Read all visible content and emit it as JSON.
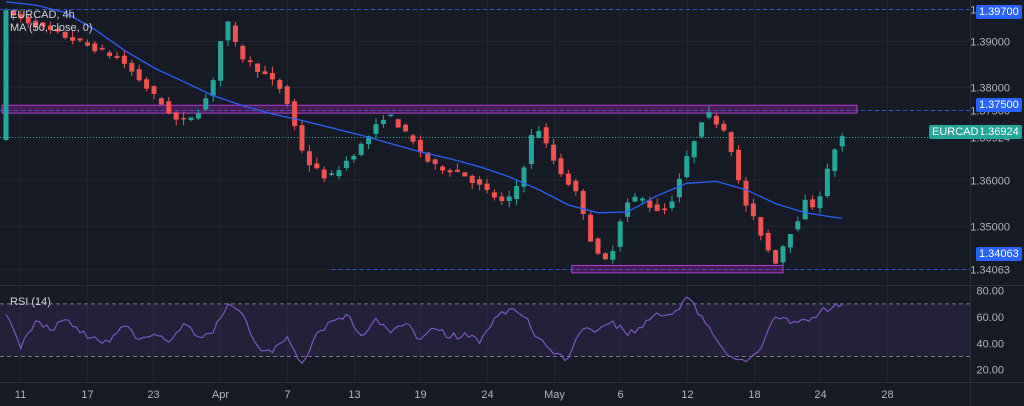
{
  "symbol_title": "EURCAD, 4h",
  "ma_legend": "MA (50, close, 0)",
  "rsi_legend": "RSI (14)",
  "symbol_badge": "EURCAD",
  "price_labels": {
    "level_high": "1.39700",
    "level_res": "1.37500",
    "last": "1.36924",
    "level_low": "1.34063"
  },
  "colors": {
    "background": "#161a25",
    "up_candle": "#26a69a",
    "down_candle": "#ef5350",
    "ma_line": "#2962ff",
    "rsi_line": "#7e57c2",
    "zone_fill": "#9c27b0",
    "level_line": "#2962ff"
  },
  "chart_data": [
    {
      "type": "candlestick",
      "title": "EURCAD, 4h",
      "x_tick_labels": [
        "11",
        "17",
        "23",
        "Apr",
        "7",
        "13",
        "19",
        "24",
        "May",
        "6",
        "12",
        "18",
        "24",
        "28"
      ],
      "y_tick_labels": [
        "1.39700",
        "1.39000",
        "1.38000",
        "1.37500",
        "1.36924",
        "1.36000",
        "1.35000",
        "1.34063"
      ],
      "ylim": [
        1.3376,
        1.3989
      ],
      "grid": true,
      "series": [
        {
          "name": "MA (50, close, 0)",
          "type": "line",
          "points": [
            [
              0,
              1.3985
            ],
            [
              4,
              1.3978
            ],
            [
              8,
              1.3962
            ],
            [
              12,
              1.3925
            ],
            [
              16,
              1.388
            ],
            [
              20,
              1.3842
            ],
            [
              24,
              1.3812
            ],
            [
              28,
              1.3782
            ],
            [
              32,
              1.376
            ],
            [
              36,
              1.3742
            ],
            [
              40,
              1.3728
            ],
            [
              44,
              1.3712
            ],
            [
              48,
              1.3696
            ],
            [
              52,
              1.3678
            ],
            [
              56,
              1.366
            ],
            [
              60,
              1.3645
            ],
            [
              64,
              1.3628
            ],
            [
              68,
              1.3606
            ],
            [
              72,
              1.3578
            ],
            [
              76,
              1.3545
            ],
            [
              80,
              1.3528
            ],
            [
              84,
              1.353
            ],
            [
              88,
              1.3565
            ],
            [
              92,
              1.3592
            ],
            [
              96,
              1.3596
            ],
            [
              100,
              1.3578
            ],
            [
              104,
              1.3548
            ],
            [
              108,
              1.3528
            ],
            [
              112,
              1.3518
            ],
            [
              113,
              1.3516
            ]
          ]
        }
      ],
      "horizontal_levels": [
        1.397,
        1.375,
        1.34063
      ],
      "last_price": 1.36924,
      "zones": [
        {
          "from": 1.3744,
          "to": 1.3761,
          "x_start": 0,
          "x_end": 115
        },
        {
          "from": 1.3398,
          "to": 1.3414,
          "x_start": 77,
          "x_end": 105
        }
      ]
    },
    {
      "type": "line",
      "title": "RSI (14)",
      "y_tick_labels": [
        "80.00",
        "60.00",
        "40.00",
        "20.00"
      ],
      "ylim": [
        16,
        82
      ],
      "band": [
        30,
        70
      ],
      "series": [
        {
          "name": "RSI (14)",
          "points": [
            [
              0,
              62
            ],
            [
              2,
              36
            ],
            [
              4,
              57
            ],
            [
              6,
              50
            ],
            [
              8,
              58
            ],
            [
              10,
              48
            ],
            [
              12,
              45
            ],
            [
              14,
              41
            ],
            [
              16,
              53
            ],
            [
              18,
              43
            ],
            [
              20,
              47
            ],
            [
              22,
              41
            ],
            [
              24,
              55
            ],
            [
              26,
              45
            ],
            [
              28,
              48
            ],
            [
              30,
              70
            ],
            [
              32,
              62
            ],
            [
              34,
              38
            ],
            [
              36,
              33
            ],
            [
              38,
              45
            ],
            [
              40,
              25
            ],
            [
              42,
              48
            ],
            [
              44,
              57
            ],
            [
              46,
              62
            ],
            [
              48,
              46
            ],
            [
              50,
              59
            ],
            [
              52,
              48
            ],
            [
              54,
              55
            ],
            [
              56,
              43
            ],
            [
              58,
              51
            ],
            [
              60,
              44
            ],
            [
              62,
              48
            ],
            [
              64,
              40
            ],
            [
              66,
              59
            ],
            [
              68,
              66
            ],
            [
              70,
              60
            ],
            [
              72,
              44
            ],
            [
              74,
              32
            ],
            [
              76,
              29
            ],
            [
              78,
              51
            ],
            [
              80,
              50
            ],
            [
              82,
              57
            ],
            [
              84,
              46
            ],
            [
              86,
              52
            ],
            [
              88,
              63
            ],
            [
              90,
              62
            ],
            [
              92,
              75
            ],
            [
              94,
              61
            ],
            [
              96,
              43
            ],
            [
              98,
              30
            ],
            [
              100,
              26
            ],
            [
              102,
              36
            ],
            [
              104,
              60
            ],
            [
              106,
              55
            ],
            [
              108,
              58
            ],
            [
              110,
              64
            ],
            [
              112,
              69
            ],
            [
              113,
              70
            ]
          ]
        }
      ]
    }
  ]
}
